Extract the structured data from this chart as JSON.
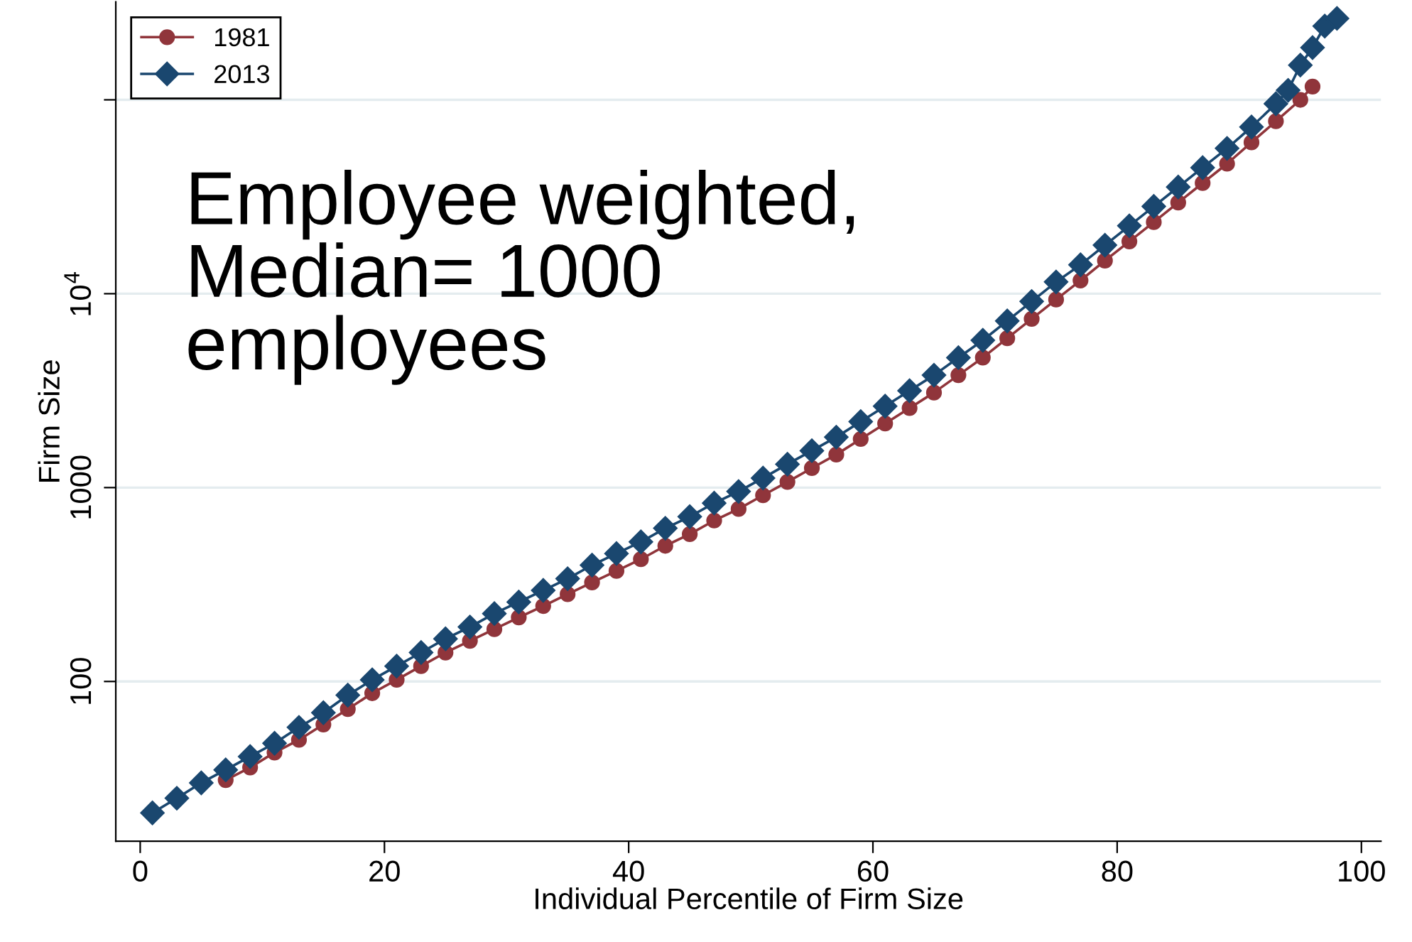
{
  "chart_data": {
    "type": "line",
    "xlabel": "Individual Percentile of Firm Size",
    "ylabel": "Firm Size",
    "log": "y",
    "xlim": [
      -2,
      101.6
    ],
    "ylim": [
      15,
      320000
    ],
    "xticks": [
      0,
      20,
      40,
      60,
      80,
      100
    ],
    "yticks": [
      100,
      1000,
      {
        "value": 10000,
        "label": "10$^{4}$"
      },
      {
        "value": 100000,
        "label": null
      }
    ],
    "grid": "y",
    "legend": "top left",
    "annotations": [
      "Employee weighted,\nMedian= 1000\nemployees"
    ],
    "series": [
      {
        "name": "1981",
        "color": "#90353b",
        "marker": "circle",
        "x": [
          7,
          9,
          11,
          13,
          15,
          17,
          19,
          21,
          23,
          25,
          27,
          29,
          31,
          33,
          35,
          37,
          39,
          41,
          43,
          45,
          47,
          49,
          51,
          53,
          55,
          57,
          59,
          61,
          63,
          65,
          67,
          69,
          71,
          73,
          75,
          77,
          79,
          81,
          83,
          85,
          87,
          89,
          91,
          93,
          95,
          96
        ],
        "values": [
          31,
          36,
          43,
          50,
          60,
          72,
          87,
          102,
          120,
          141,
          162,
          186,
          214,
          245,
          282,
          324,
          372,
          427,
          501,
          575,
          676,
          776,
          912,
          1070,
          1260,
          1480,
          1780,
          2140,
          2570,
          3090,
          3800,
          4680,
          5890,
          7410,
          9330,
          11700,
          14800,
          18600,
          23400,
          29500,
          37200,
          46800,
          60300,
          77600,
          100000,
          117000
        ]
      },
      {
        "name": "2013",
        "color": "#1a476f",
        "marker": "diamond",
        "x": [
          1,
          3,
          5,
          7,
          9,
          11,
          13,
          15,
          17,
          19,
          21,
          23,
          25,
          27,
          29,
          31,
          33,
          35,
          37,
          39,
          41,
          43,
          45,
          47,
          49,
          51,
          53,
          55,
          57,
          59,
          61,
          63,
          65,
          67,
          69,
          71,
          73,
          75,
          77,
          79,
          81,
          83,
          85,
          87,
          89,
          91,
          93,
          94,
          95,
          96,
          97,
          98
        ],
        "values": [
          21,
          25,
          30,
          35,
          41,
          48,
          58,
          69,
          85,
          102,
          120,
          141,
          166,
          191,
          224,
          257,
          295,
          339,
          398,
          457,
          525,
          617,
          708,
          832,
          955,
          1120,
          1320,
          1550,
          1820,
          2190,
          2630,
          3160,
          3800,
          4680,
          5750,
          7240,
          9120,
          11500,
          14100,
          17800,
          22400,
          28200,
          35500,
          44700,
          56200,
          72400,
          95500,
          112000,
          151000,
          186000,
          240000,
          263000
        ]
      }
    ]
  }
}
